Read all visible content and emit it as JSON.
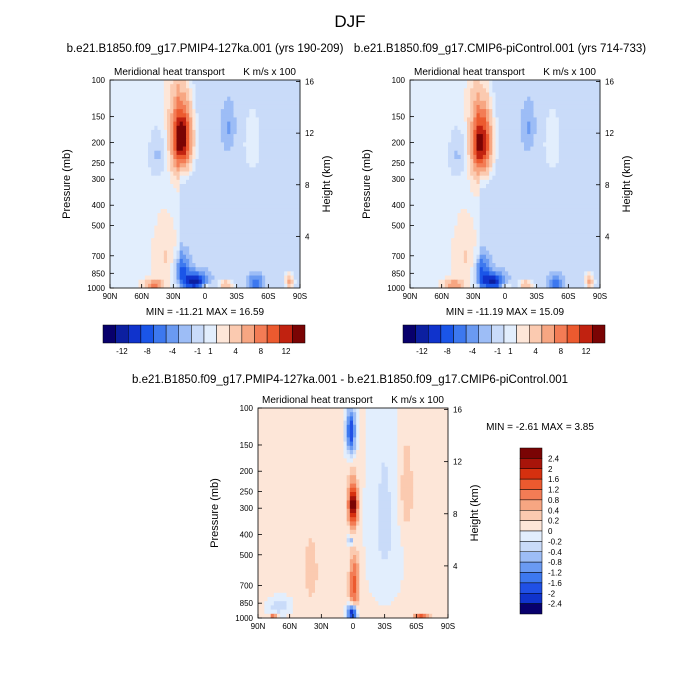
{
  "page_title": "DJF",
  "chart_data": [
    {
      "type": "heatmap",
      "title": "b.e21.B1850.f09_g17.PMIP4-127ka.001 (yrs 190-209)",
      "left_label": "Meridional heat transport",
      "right_label": "K m/s x 100",
      "ylabel": "Pressure (mb)",
      "ylabel_right": "Height (km)",
      "x_ticks": [
        "90N",
        "60N",
        "30N",
        "0",
        "30S",
        "60S",
        "90S"
      ],
      "y_ticks": [
        "100",
        "150",
        "200",
        "250",
        "300",
        "400",
        "500",
        "700",
        "850",
        "1000"
      ],
      "height_ticks": [
        "16",
        "12",
        "8",
        "4"
      ],
      "stats": "MIN = -11.21   MAX =  16.59",
      "colorbar_labels": [
        "-12",
        "-8",
        "-4",
        "-1",
        "1",
        "4",
        "8",
        "12"
      ],
      "min": -11.21,
      "max": 16.59,
      "features": [
        {
          "lat": 22,
          "p": 190,
          "value": 15,
          "rx": 9,
          "rp": 70
        },
        {
          "lat": 10,
          "p": 930,
          "value": -11,
          "rx": 10,
          "rp": 80
        },
        {
          "lat": 22,
          "p": 820,
          "value": -6,
          "rx": 6,
          "rp": 120
        },
        {
          "lat": 48,
          "p": 960,
          "value": 6,
          "rx": 7,
          "rp": 50
        },
        {
          "lat": 0,
          "p": 970,
          "value": 3.5,
          "rx": 5,
          "rp": 40
        },
        {
          "lat": -20,
          "p": 960,
          "value": 4,
          "rx": 7,
          "rp": 50
        },
        {
          "lat": -48,
          "p": 950,
          "value": -5,
          "rx": 6,
          "rp": 70
        },
        {
          "lat": -80,
          "p": 930,
          "value": 5,
          "rx": 4,
          "rp": 80
        },
        {
          "lat": 45,
          "p": 230,
          "value": -2,
          "rx": 10,
          "rp": 70
        },
        {
          "lat": -22,
          "p": 170,
          "value": -1.5,
          "rx": 6,
          "rp": 40
        },
        {
          "lat": -45,
          "p": 200,
          "value": 1.5,
          "rx": 8,
          "rp": 70
        },
        {
          "lat": 38,
          "p": 700,
          "value": 1.2,
          "rx": 8,
          "rp": 180
        },
        {
          "lat": -30,
          "p": 480,
          "value": 0.7,
          "rx": 15,
          "rp": 200
        }
      ]
    },
    {
      "type": "heatmap",
      "title": "b.e21.B1850.f09_g17.CMIP6-piControl.001 (yrs 714-733)",
      "left_label": "Meridional heat transport",
      "right_label": "K m/s x 100",
      "ylabel": "Pressure (mb)",
      "ylabel_right": "Height (km)",
      "x_ticks": [
        "90N",
        "60N",
        "30N",
        "0",
        "30S",
        "60S",
        "90S"
      ],
      "y_ticks": [
        "100",
        "150",
        "200",
        "250",
        "300",
        "400",
        "500",
        "700",
        "850",
        "1000"
      ],
      "height_ticks": [
        "16",
        "12",
        "8",
        "4"
      ],
      "stats": "MIN = -11.19   MAX =  15.09",
      "colorbar_labels": [
        "-12",
        "-8",
        "-4",
        "-1",
        "1",
        "4",
        "8",
        "12"
      ],
      "min": -11.19,
      "max": 15.09,
      "features": [
        {
          "lat": 22,
          "p": 200,
          "value": 13.5,
          "rx": 9,
          "rp": 75
        },
        {
          "lat": 12,
          "p": 930,
          "value": -10,
          "rx": 10,
          "rp": 80
        },
        {
          "lat": 22,
          "p": 820,
          "value": -5.5,
          "rx": 6,
          "rp": 120
        },
        {
          "lat": 48,
          "p": 960,
          "value": 5.5,
          "rx": 7,
          "rp": 50
        },
        {
          "lat": 0,
          "p": 970,
          "value": 3,
          "rx": 5,
          "rp": 40
        },
        {
          "lat": -20,
          "p": 960,
          "value": 4,
          "rx": 7,
          "rp": 50
        },
        {
          "lat": -48,
          "p": 950,
          "value": -4.5,
          "rx": 6,
          "rp": 70
        },
        {
          "lat": -80,
          "p": 930,
          "value": 5,
          "rx": 4,
          "rp": 80
        },
        {
          "lat": 45,
          "p": 230,
          "value": -2,
          "rx": 10,
          "rp": 70
        },
        {
          "lat": -22,
          "p": 170,
          "value": -1.5,
          "rx": 6,
          "rp": 40
        },
        {
          "lat": -45,
          "p": 200,
          "value": 1.5,
          "rx": 8,
          "rp": 70
        },
        {
          "lat": 38,
          "p": 700,
          "value": 1.2,
          "rx": 8,
          "rp": 180
        },
        {
          "lat": -30,
          "p": 480,
          "value": 0.7,
          "rx": 15,
          "rp": 200
        }
      ]
    },
    {
      "type": "heatmap",
      "title": "b.e21.B1850.f09_g17.PMIP4-127ka.001 - b.e21.B1850.f09_g17.CMIP6-piControl.001",
      "left_label": "Meridional heat transport",
      "right_label": "K m/s x 100",
      "ylabel": "Pressure (mb)",
      "ylabel_right": "Height (km)",
      "x_ticks": [
        "90N",
        "60N",
        "30N",
        "0",
        "30S",
        "60S",
        "90S"
      ],
      "y_ticks": [
        "100",
        "150",
        "200",
        "250",
        "300",
        "400",
        "500",
        "700",
        "850",
        "1000"
      ],
      "height_ticks": [
        "16",
        "12",
        "8",
        "4"
      ],
      "stats": "MIN =  -2.61   MAX =   3.85",
      "colorbar_labels": [
        "2.4",
        "2",
        "1.6",
        "1.2",
        "0.8",
        "0.4",
        "0.2",
        "0",
        "-0.2",
        "-0.4",
        "-0.8",
        "-1.2",
        "-1.6",
        "-2",
        "-2.4"
      ],
      "min": -2.61,
      "max": 3.85,
      "features": [
        {
          "lat": 0,
          "p": 290,
          "value": 2.8,
          "rx": 4,
          "rp": 60
        },
        {
          "lat": 2,
          "p": 130,
          "value": -2,
          "rx": 4,
          "rp": 30
        },
        {
          "lat": 1,
          "p": 950,
          "value": -2.4,
          "rx": 4,
          "rp": 80
        },
        {
          "lat": -1,
          "p": 700,
          "value": 1.4,
          "rx": 4,
          "rp": 180
        },
        {
          "lat": -65,
          "p": 985,
          "value": 1.5,
          "rx": 6,
          "rp": 25
        },
        {
          "lat": 75,
          "p": 990,
          "value": 2.2,
          "rx": 3,
          "rp": 15
        },
        {
          "lat": 2,
          "p": 430,
          "value": -0.6,
          "rx": 3,
          "rp": 20
        },
        {
          "lat": -30,
          "p": 350,
          "value": -0.3,
          "rx": 15,
          "rp": 400
        },
        {
          "lat": -50,
          "p": 250,
          "value": 0.3,
          "rx": 8,
          "rp": 150
        },
        {
          "lat": 40,
          "p": 600,
          "value": 0.25,
          "rx": 8,
          "rp": 250
        },
        {
          "lat": 70,
          "p": 880,
          "value": -0.4,
          "rx": 10,
          "rp": 80
        }
      ]
    }
  ]
}
